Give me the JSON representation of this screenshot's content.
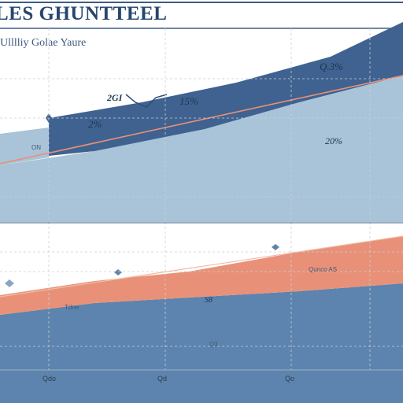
{
  "chart_data": {
    "type": "area",
    "title": "LES GHUNTTEEL",
    "subtitle": "Ulllliy Golae Yaure",
    "x_ticks": [
      "Qdo",
      "Qd",
      "Qo"
    ],
    "grid": true,
    "colors": {
      "navy": "#3f6290",
      "lightblue": "#a9c3d8",
      "salmon": "#e99178",
      "midblue": "#5c84ae",
      "frame": "#3d5c86"
    },
    "upper_panel": {
      "labels": [
        "Q.3%",
        "2GI",
        "15%",
        "2%",
        "20%",
        "ON"
      ]
    },
    "lower_panel": {
      "labels": [
        "Qunco AS",
        "S8",
        "Tdne",
        "Q3"
      ]
    }
  }
}
